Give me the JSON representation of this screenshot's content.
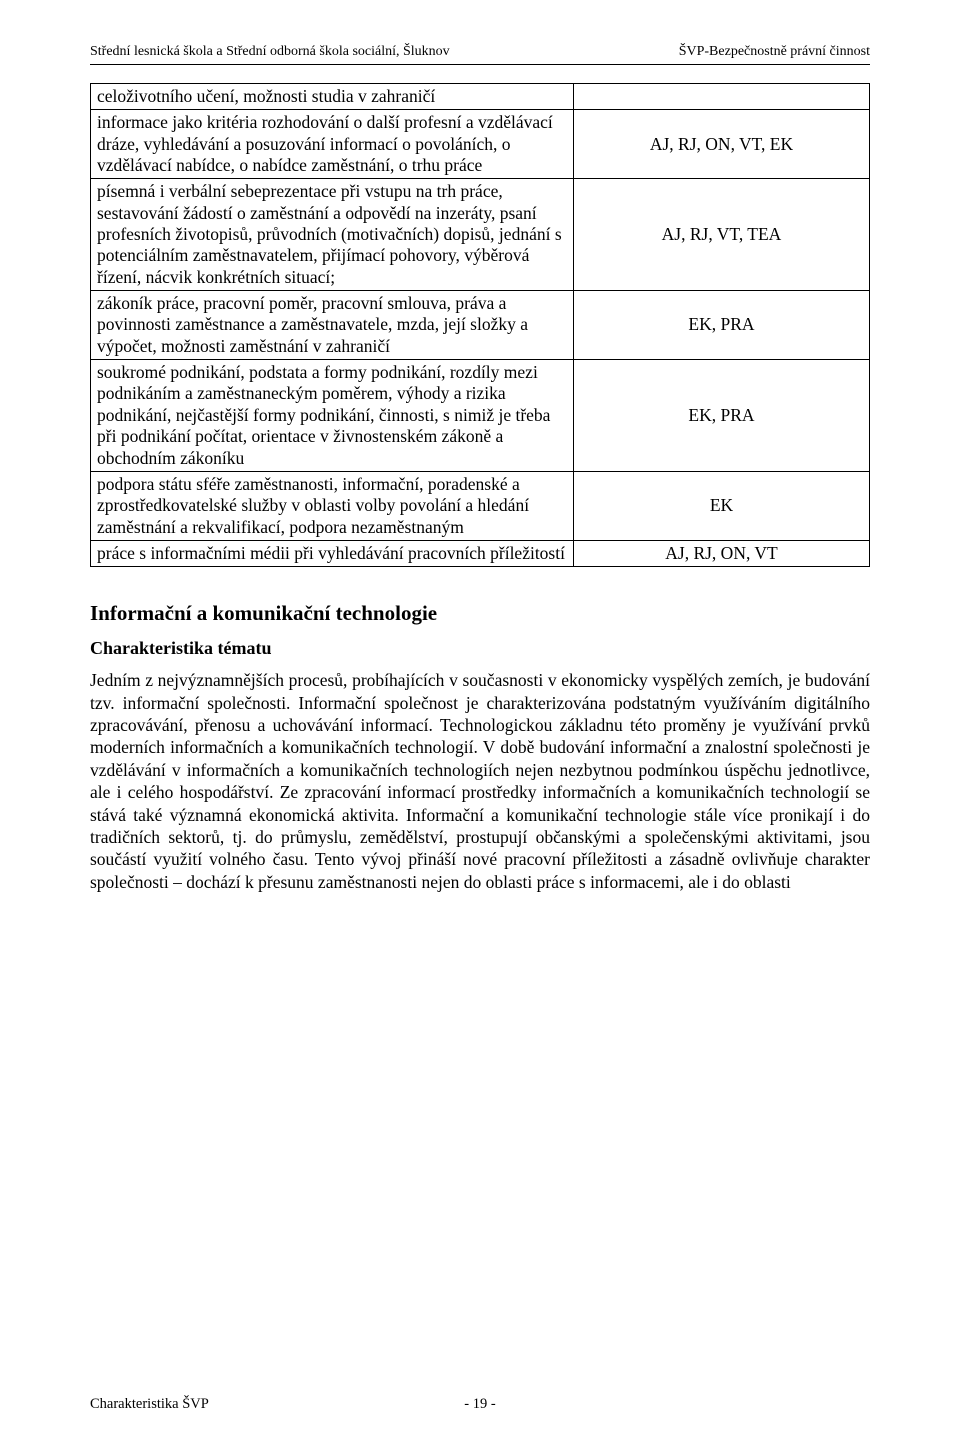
{
  "header": {
    "left": "Střední lesnická škola a Střední odborná škola sociální, Šluknov",
    "right": "ŠVP-Bezpečnostně právní činnost"
  },
  "table": {
    "rows": [
      {
        "left": "celoživotního učení, možnosti studia v zahraničí",
        "right": ""
      },
      {
        "left": "informace jako kritéria rozhodování o další profesní a vzdělávací dráze, vyhledávání a posuzování informací o povoláních, o vzdělávací nabídce, o nabídce zaměstnání, o trhu práce",
        "right": "AJ, RJ, ON, VT, EK"
      },
      {
        "left": "písemná i verbální sebeprezentace při vstupu na trh práce, sestavování žádostí o zaměstnání a odpovědí na inzeráty, psaní profesních životopisů, průvodních (motivačních) dopisů, jednání s potenciálním zaměstnavatelem, přijímací pohovory, výběrová řízení, nácvik konkrétních situací;",
        "right": "AJ, RJ, VT, TEA"
      },
      {
        "left": "zákoník práce, pracovní poměr, pracovní smlouva, práva a povinnosti zaměstnance a zaměstnavatele, mzda, její složky a výpočet, možnosti zaměstnání v zahraničí",
        "right": "EK, PRA"
      },
      {
        "left": "soukromé podnikání, podstata a formy podnikání, rozdíly mezi podnikáním a zaměstnaneckým poměrem, výhody a rizika podnikání, nejčastější formy podnikání, činnosti, s nimiž je třeba při podnikání počítat, orientace v živnostenském zákoně a obchodním zákoníku",
        "right": "EK, PRA"
      },
      {
        "left": "podpora státu sféře zaměstnanosti, informační, poradenské a zprostředkovatelské služby v oblasti volby povolání a hledání zaměstnání a rekvalifikací, podpora nezaměstnaným",
        "right": "EK"
      },
      {
        "left": "práce s informačními médii při vyhledávání pracovních příležitostí",
        "right": "AJ, RJ, ON, VT"
      }
    ]
  },
  "section_heading": "Informační a komunikační technologie",
  "sub_heading": "Charakteristika tématu",
  "paragraph": "Jedním z nejvýznamnějších procesů, probíhajících v současnosti v ekonomicky vyspělých zemích, je budování tzv. informační společnosti. Informační společnost je charakterizována podstatným využíváním digitálního zpracovávání, přenosu a uchovávání informací. Technologickou základnu této proměny je využívání prvků moderních informačních a komunikačních technologií. V době budování informační a znalostní společnosti je vzdělávání v informačních a komunikačních technologiích nejen nezbytnou podmínkou úspěchu jednotlivce, ale i celého hospodářství. Ze zpracování informací prostředky informačních a komunikačních technologií se stává také významná ekonomická aktivita. Informační a komunikační technologie stále více pronikají i do tradičních sektorů, tj. do průmyslu, zemědělství, prostupují občanskými a společenskými aktivitami, jsou součástí využití volného času. Tento vývoj přináší nové pracovní příležitosti a zásadně ovlivňuje charakter společnosti – dochází k přesunu zaměstnanosti nejen do oblasti práce s informacemi, ale i do oblasti",
  "footer": {
    "left": "Charakteristika ŠVP",
    "center": "- 19 -"
  }
}
